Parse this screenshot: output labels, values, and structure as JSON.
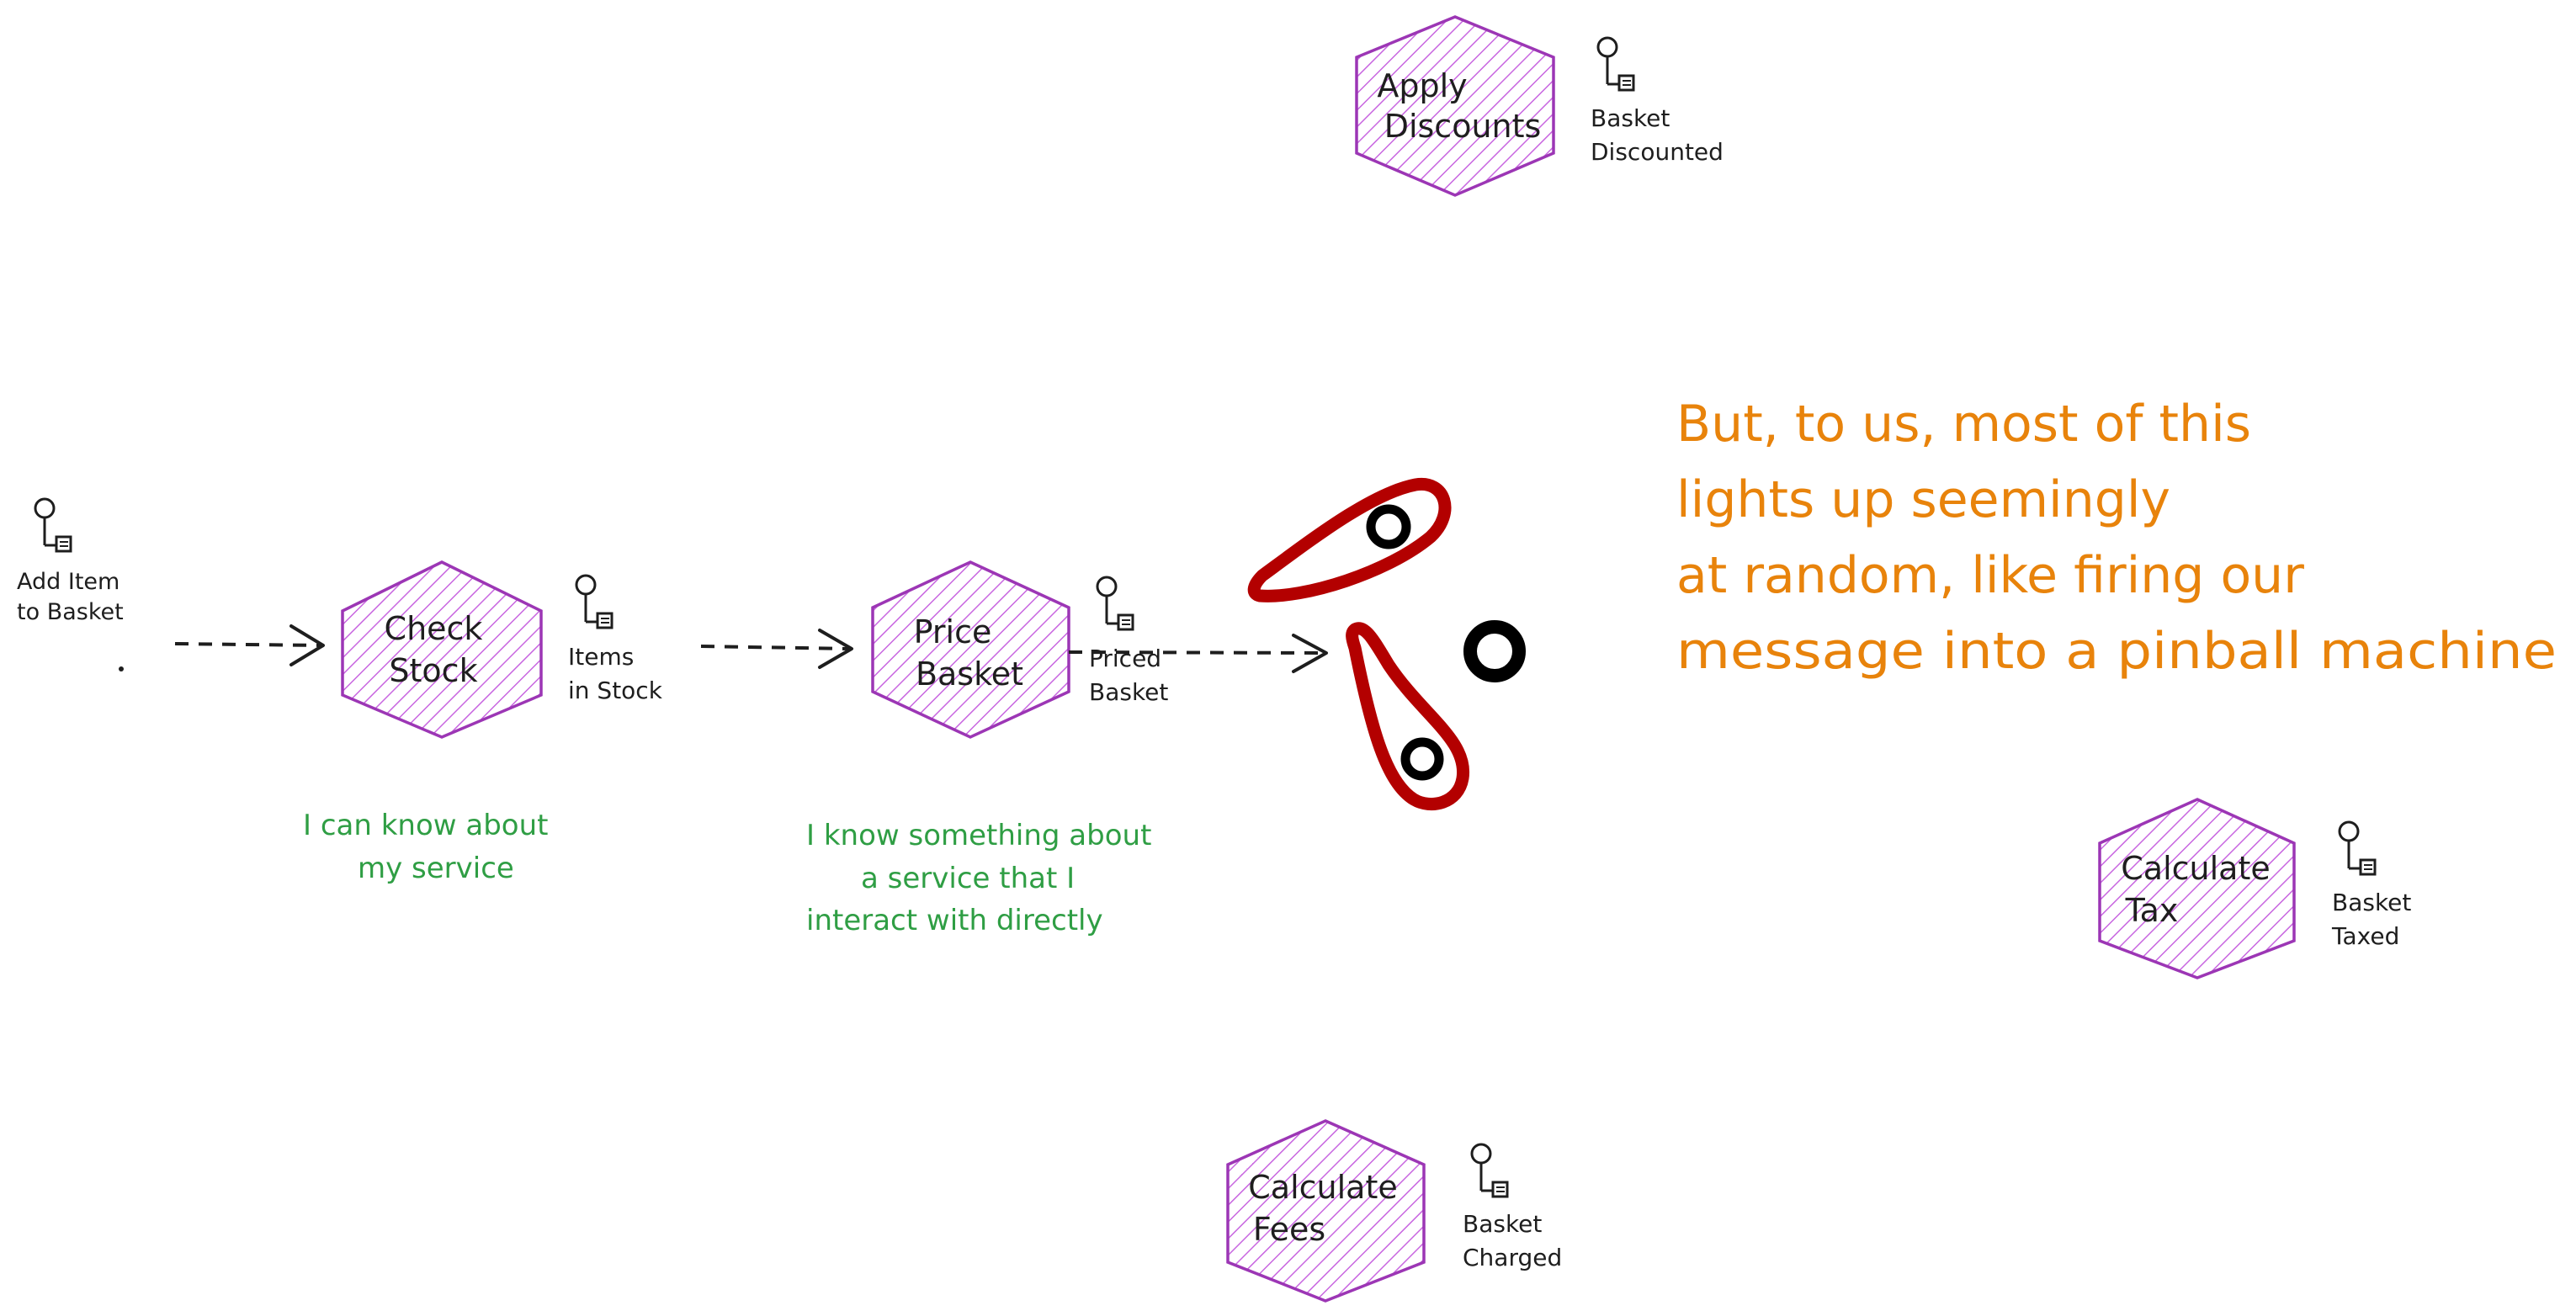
{
  "colors": {
    "hex_stroke": "#9c36b5",
    "hex_fill_hatch": "#be4bdb",
    "ink": "#1e1e1e",
    "green_note": "#2f9e44",
    "orange_note": "#e8830b",
    "flipper_red": "#b30000",
    "black": "#000000"
  },
  "services": {
    "check_stock": [
      "Check",
      "Stock"
    ],
    "price_basket": [
      "Price",
      "Basket"
    ],
    "apply_discounts": [
      "Apply",
      "Discounts"
    ],
    "calculate_tax": [
      "Calculate",
      "Tax"
    ],
    "calculate_fees": [
      "Calculate",
      "Fees"
    ]
  },
  "events": {
    "add_item": [
      "Add Item",
      "to Basket"
    ],
    "items_in_stock": [
      "Items",
      "in Stock"
    ],
    "priced_basket": [
      "Priced",
      "Basket"
    ],
    "basket_discounted": [
      "Basket",
      "Discounted"
    ],
    "basket_taxed": [
      "Basket",
      "Taxed"
    ],
    "basket_charged": [
      "Basket",
      "Charged"
    ]
  },
  "notes": {
    "check_stock_note": [
      "I can  know about",
      "my service"
    ],
    "price_basket_note": [
      "I know something about",
      "a service that I",
      "interact with directly"
    ],
    "pinball_note": [
      "But, to us,  most of this",
      "lights up seemingly",
      "at random, like firing our",
      "message into a pinball machine"
    ]
  },
  "icons": [
    "event-marker-icon",
    "pinball-flipper-icon",
    "pinball-bumper-icon",
    "arrow-right-icon"
  ]
}
